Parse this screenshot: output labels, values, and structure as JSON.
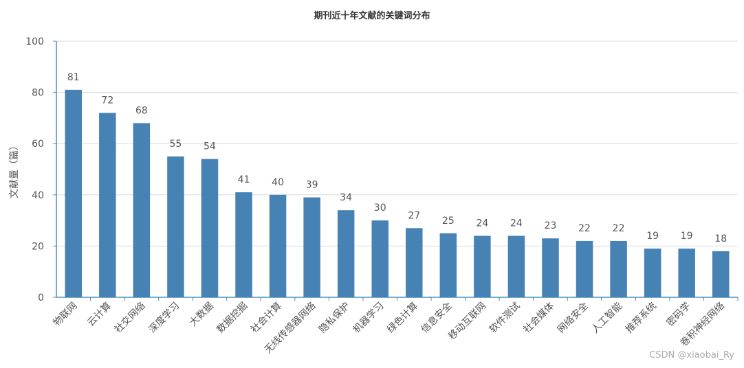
{
  "chart_data": {
    "type": "bar",
    "title": "期刊近十年文献的关键词分布",
    "xlabel": "",
    "ylabel": "文献量（篇）",
    "ylim": [
      0,
      100
    ],
    "yticks": [
      0,
      20,
      40,
      60,
      80,
      100
    ],
    "grid": true,
    "bar_color": "#4682B4",
    "categories": [
      "物联网",
      "云计算",
      "社交网络",
      "深度学习",
      "大数据",
      "数据挖掘",
      "社会计算",
      "无线传感器网络",
      "隐私保护",
      "机器学习",
      "绿色计算",
      "信息安全",
      "移动互联网",
      "软件测试",
      "社会媒体",
      "网络安全",
      "人工智能",
      "推荐系统",
      "密码学",
      "卷积神经网络"
    ],
    "values": [
      81,
      72,
      68,
      55,
      54,
      41,
      40,
      39,
      34,
      30,
      27,
      25,
      24,
      24,
      23,
      22,
      22,
      19,
      19,
      18
    ]
  },
  "watermark": "CSDN @xiaobai_Ry"
}
